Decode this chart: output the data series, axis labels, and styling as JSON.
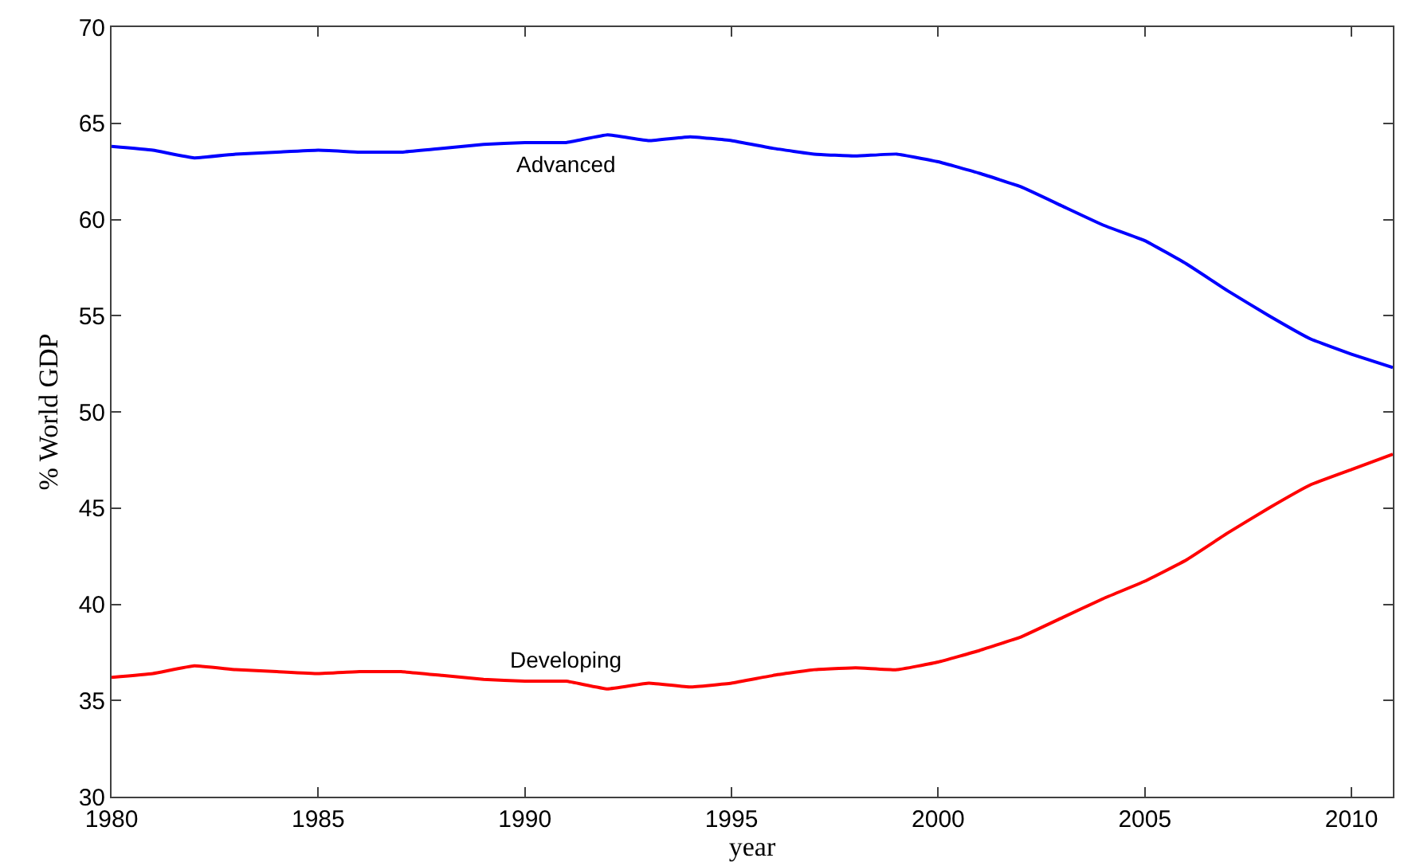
{
  "chart_data": {
    "type": "line",
    "xlabel": "year",
    "ylabel": "% World GDP",
    "x": [
      1980,
      1981,
      1982,
      1983,
      1984,
      1985,
      1986,
      1987,
      1988,
      1989,
      1990,
      1991,
      1992,
      1993,
      1994,
      1995,
      1996,
      1997,
      1998,
      1999,
      2000,
      2001,
      2002,
      2003,
      2004,
      2005,
      2006,
      2007,
      2008,
      2009,
      2010,
      2011
    ],
    "series": [
      {
        "name": "Advanced",
        "color": "#0000ff",
        "values": [
          63.8,
          63.6,
          63.2,
          63.4,
          63.5,
          63.6,
          63.5,
          63.5,
          63.7,
          63.9,
          64.0,
          64.0,
          64.4,
          64.1,
          64.3,
          64.1,
          63.7,
          63.4,
          63.3,
          63.4,
          63.0,
          62.4,
          61.7,
          60.7,
          59.7,
          58.9,
          57.7,
          56.3,
          55.0,
          53.8,
          53.0,
          52.3
        ]
      },
      {
        "name": "Developing",
        "color": "#ff0000",
        "values": [
          36.2,
          36.4,
          36.8,
          36.6,
          36.5,
          36.4,
          36.5,
          36.5,
          36.3,
          36.1,
          36.0,
          36.0,
          35.6,
          35.9,
          35.7,
          35.9,
          36.3,
          36.6,
          36.7,
          36.6,
          37.0,
          37.6,
          38.3,
          39.3,
          40.3,
          41.2,
          42.3,
          43.7,
          45.0,
          46.2,
          47.0,
          47.8
        ]
      }
    ],
    "xlim": [
      1980,
      2011
    ],
    "xticks": [
      1980,
      1985,
      1990,
      1995,
      2000,
      2005,
      2010
    ],
    "ylim": [
      30,
      70
    ],
    "yticks": [
      30,
      35,
      40,
      45,
      50,
      55,
      60,
      65,
      70
    ],
    "legend": false
  }
}
